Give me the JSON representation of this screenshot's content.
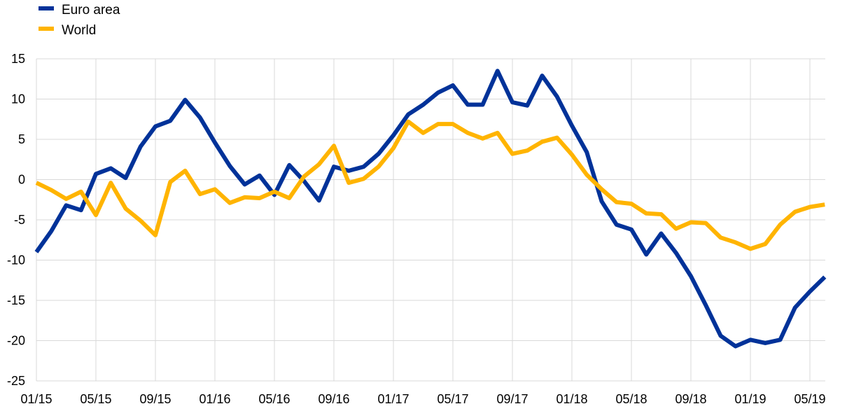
{
  "chart_data": {
    "type": "line",
    "title": "",
    "xlabel": "",
    "ylabel": "",
    "ylim": [
      -25,
      15
    ],
    "yticks": [
      15,
      10,
      5,
      0,
      -5,
      -10,
      -15,
      -20,
      -25
    ],
    "ytick_labels": [
      "15",
      "10",
      "5",
      "0",
      "-5",
      "-10",
      "-15",
      "-20",
      "-25"
    ],
    "xtick_labels": [
      "01/15",
      "05/15",
      "09/15",
      "01/16",
      "05/16",
      "09/16",
      "01/17",
      "05/17",
      "09/17",
      "01/18",
      "05/18",
      "09/18",
      "01/19",
      "05/19"
    ],
    "xtick_every_months": 4,
    "grid": true,
    "legend_position": "top-left",
    "x": [
      "01/15",
      "02/15",
      "03/15",
      "04/15",
      "05/15",
      "06/15",
      "07/15",
      "08/15",
      "09/15",
      "10/15",
      "11/15",
      "12/15",
      "01/16",
      "02/16",
      "03/16",
      "04/16",
      "05/16",
      "06/16",
      "07/16",
      "08/16",
      "09/16",
      "10/16",
      "11/16",
      "12/16",
      "01/17",
      "02/17",
      "03/17",
      "04/17",
      "05/17",
      "06/17",
      "07/17",
      "08/17",
      "09/17",
      "10/17",
      "11/17",
      "12/17",
      "01/18",
      "02/18",
      "03/18",
      "04/18",
      "05/18",
      "06/18",
      "07/18",
      "08/18",
      "09/18",
      "10/18",
      "11/18",
      "12/18",
      "01/19",
      "02/19",
      "03/19",
      "04/19",
      "05/19",
      "06/19"
    ],
    "series": [
      {
        "name": "Euro area",
        "color": "#003299",
        "values": [
          -9.0,
          -6.4,
          -3.2,
          -3.8,
          0.7,
          1.4,
          0.2,
          4.1,
          6.6,
          7.3,
          9.9,
          7.7,
          4.6,
          1.7,
          -0.6,
          0.5,
          -1.9,
          1.8,
          -0.2,
          -2.6,
          1.6,
          1.1,
          1.6,
          3.2,
          5.5,
          8.1,
          9.3,
          10.8,
          11.7,
          9.3,
          9.3,
          13.5,
          9.6,
          9.2,
          12.9,
          10.3,
          6.7,
          3.4,
          -2.7,
          -5.6,
          -6.2,
          -9.3,
          -6.7,
          -9.1,
          -12.0,
          -15.6,
          -19.4,
          -20.7,
          -19.9,
          -20.3,
          -19.9,
          -15.9,
          -13.9,
          -12.1
        ]
      },
      {
        "name": "World",
        "color": "#FFB400",
        "values": [
          -0.4,
          -1.3,
          -2.4,
          -1.5,
          -4.4,
          -0.4,
          -3.6,
          -5.1,
          -6.9,
          -0.3,
          1.1,
          -1.8,
          -1.2,
          -2.9,
          -2.2,
          -2.3,
          -1.5,
          -2.3,
          0.4,
          1.9,
          4.2,
          -0.4,
          0.1,
          1.6,
          3.9,
          7.2,
          5.8,
          6.9,
          6.9,
          5.8,
          5.1,
          5.8,
          3.2,
          3.6,
          4.7,
          5.2,
          3.1,
          0.6,
          -1.2,
          -2.8,
          -3.0,
          -4.2,
          -4.3,
          -6.1,
          -5.3,
          -5.4,
          -7.2,
          -7.8,
          -8.6,
          -8.0,
          -5.6,
          -4.0,
          -3.4,
          -3.1
        ]
      }
    ]
  }
}
